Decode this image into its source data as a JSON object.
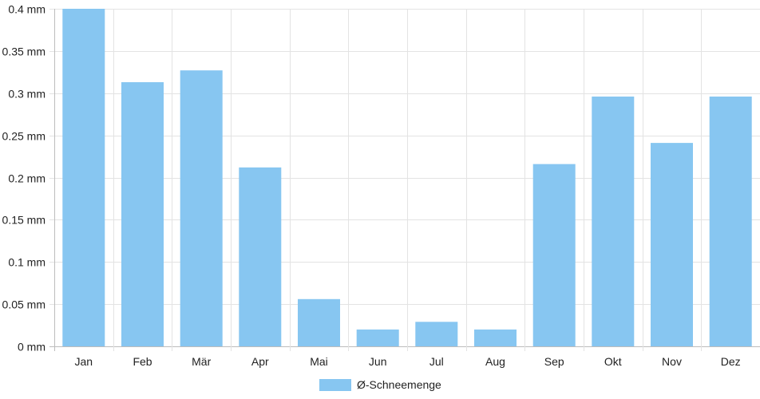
{
  "chart_data": {
    "type": "bar",
    "categories": [
      "Jan",
      "Feb",
      "Mär",
      "Apr",
      "Mai",
      "Jun",
      "Jul",
      "Aug",
      "Sep",
      "Okt",
      "Nov",
      "Dez"
    ],
    "series": [
      {
        "name": "Ø-Schneemenge",
        "values": [
          0.4,
          0.313,
          0.327,
          0.212,
          0.056,
          0.02,
          0.029,
          0.02,
          0.216,
          0.296,
          0.241,
          0.296
        ],
        "color": "#87c6f1"
      }
    ],
    "y_ticks": [
      "0 mm",
      "0.05 mm",
      "0.1 mm",
      "0.15 mm",
      "0.2 mm",
      "0.25 mm",
      "0.3 mm",
      "0.35 mm",
      "0.4 mm"
    ],
    "ylim": [
      0,
      0.4
    ],
    "grid": true,
    "legend_position": "bottom-center"
  }
}
